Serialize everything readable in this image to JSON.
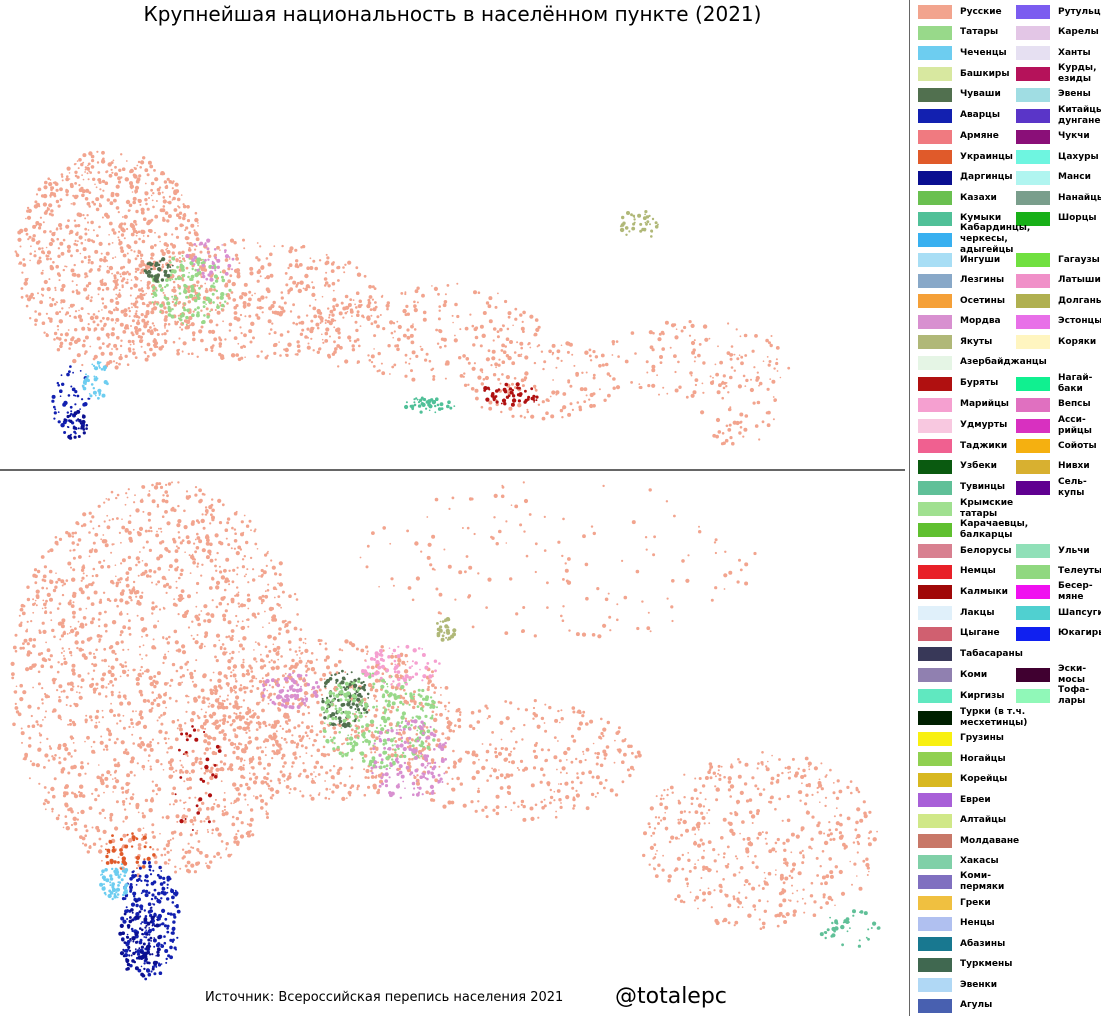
{
  "header": {
    "title": "Крупнейшая национальность в населённом пункте (2021)"
  },
  "footer": {
    "source": "Источник: Всероссийская перепись населения 2021",
    "credit": "@totalepc"
  },
  "legend": {
    "rows": [
      {
        "left": {
          "label": "Русские",
          "color": "#f2a48e"
        },
        "right": {
          "label": "Рутульцы",
          "color": "#7b5cf0"
        }
      },
      {
        "left": {
          "label": "Татары",
          "color": "#98d98a"
        },
        "right": {
          "label": "Карелы",
          "color": "#e3c6e6"
        }
      },
      {
        "left": {
          "label": "Чеченцы",
          "color": "#6dcdf0"
        },
        "right": {
          "label": "Ханты",
          "color": "#e6e0f2"
        }
      },
      {
        "left": {
          "label": "Башкиры",
          "color": "#d8e8a0"
        },
        "right": {
          "label": "Курды,\nезиды",
          "color": "#b5125a"
        }
      },
      {
        "left": {
          "label": "Чуваши",
          "color": "#51704f"
        },
        "right": {
          "label": "Эвены",
          "color": "#a0dde3"
        }
      },
      {
        "left": {
          "label": "Аварцы",
          "color": "#1220b0"
        },
        "right": {
          "label": "Китайцы,\nдунгане",
          "color": "#5a35c8"
        }
      },
      {
        "left": {
          "label": "Армяне",
          "color": "#f07a80"
        },
        "right": {
          "label": "Чукчи",
          "color": "#8a0f78"
        }
      },
      {
        "left": {
          "label": "Украинцы",
          "color": "#e05a2a"
        },
        "right": {
          "label": "Цахуры",
          "color": "#6ef5e0"
        }
      },
      {
        "left": {
          "label": "Даргинцы",
          "color": "#0a0f90"
        },
        "right": {
          "label": "Манси",
          "color": "#b0f5f0"
        }
      },
      {
        "left": {
          "label": "Казахи",
          "color": "#6ac050"
        },
        "right": {
          "label": "Нанайцы",
          "color": "#7a9e8c"
        }
      },
      {
        "left": {
          "label": "Кумыки",
          "color": "#50c098"
        },
        "right": {
          "label": "Шорцы",
          "color": "#18b018"
        }
      },
      {
        "left": {
          "label": "Кабардинцы,\nчеркесы, адыгейцы",
          "color": "#38b0f0"
        }
      },
      {
        "left": {
          "label": "Ингуши",
          "color": "#a8def5"
        },
        "right": {
          "label": "Гагаузы",
          "color": "#70e040"
        }
      },
      {
        "left": {
          "label": "Лезгины",
          "color": "#88a8c8"
        },
        "right": {
          "label": "Латыши",
          "color": "#f090c8"
        }
      },
      {
        "left": {
          "label": "Осетины",
          "color": "#f5a038"
        },
        "right": {
          "label": "Долганы",
          "color": "#b0b050"
        }
      },
      {
        "left": {
          "label": "Мордва",
          "color": "#d890d0"
        },
        "right": {
          "label": "Эстонцы",
          "color": "#e870e8"
        }
      },
      {
        "left": {
          "label": "Якуты",
          "color": "#b0b878"
        },
        "right": {
          "label": "Коряки",
          "color": "#fff5c0"
        }
      },
      {
        "left": {
          "label": "Азербайджанцы",
          "color": "#e5f5e5"
        }
      },
      {
        "left": {
          "label": "Буряты",
          "color": "#b01010"
        },
        "right": {
          "label": "Нагай-\nбаки",
          "color": "#10f090"
        }
      },
      {
        "left": {
          "label": "Марийцы",
          "color": "#f5a0d0"
        },
        "right": {
          "label": "Вепсы",
          "color": "#e070c0"
        }
      },
      {
        "left": {
          "label": "Удмурты",
          "color": "#f8c8e0"
        },
        "right": {
          "label": "Асси-\nрийцы",
          "color": "#d830c0"
        }
      },
      {
        "left": {
          "label": "Таджики",
          "color": "#f06090"
        },
        "right": {
          "label": "Сойоты",
          "color": "#f5b010"
        }
      },
      {
        "left": {
          "label": "Узбеки",
          "color": "#0a5a10"
        },
        "right": {
          "label": "Нивхи",
          "color": "#d8b030"
        }
      },
      {
        "left": {
          "label": "Тувинцы",
          "color": "#60c098"
        },
        "right": {
          "label": "Сель-\nкупы",
          "color": "#600090"
        }
      },
      {
        "left": {
          "label": "Крымские татары",
          "color": "#a0e090"
        }
      },
      {
        "left": {
          "label": "Карачаевцы,\nбалкарцы",
          "color": "#60c030"
        }
      },
      {
        "left": {
          "label": "Белорусы",
          "color": "#d88090"
        },
        "right": {
          "label": "Ульчи",
          "color": "#90e0b8"
        }
      },
      {
        "left": {
          "label": "Немцы",
          "color": "#e82028"
        },
        "right": {
          "label": "Телеуты",
          "color": "#90d880"
        }
      },
      {
        "left": {
          "label": "Калмыки",
          "color": "#a00808"
        },
        "right": {
          "label": "Бесер-\nмяне",
          "color": "#f010f0"
        }
      },
      {
        "left": {
          "label": "Лакцы",
          "color": "#e0f0fa"
        },
        "right": {
          "label": "Шапсуги",
          "color": "#50d0d0"
        }
      },
      {
        "left": {
          "label": "Цыгане",
          "color": "#d06070"
        },
        "right": {
          "label": "Юкагиры",
          "color": "#1020f0"
        }
      },
      {
        "left": {
          "label": "Табасараны",
          "color": "#383858"
        }
      },
      {
        "left": {
          "label": "Коми",
          "color": "#9080b0"
        },
        "right": {
          "label": "Эски-\nмосы",
          "color": "#400030"
        }
      },
      {
        "left": {
          "label": "Киргизы",
          "color": "#60e8c0"
        },
        "right": {
          "label": "Тофа-\nлары",
          "color": "#90f8b8"
        }
      },
      {
        "left": {
          "label": "Турки (в т.ч.\nмесхетинцы)",
          "color": "#002000"
        }
      },
      {
        "left": {
          "label": "Грузины",
          "color": "#f8f010"
        }
      },
      {
        "left": {
          "label": "Ногайцы",
          "color": "#90d050"
        }
      },
      {
        "left": {
          "label": "Корейцы",
          "color": "#d8b820"
        }
      },
      {
        "left": {
          "label": "Евреи",
          "color": "#a860d8"
        }
      },
      {
        "left": {
          "label": "Алтайцы",
          "color": "#d0e888"
        }
      },
      {
        "left": {
          "label": "Молдаване",
          "color": "#c87868"
        }
      },
      {
        "left": {
          "label": "Хакасы",
          "color": "#80d0a8"
        }
      },
      {
        "left": {
          "label": "Коми-пермяки",
          "color": "#8070c0"
        }
      },
      {
        "left": {
          "label": "Греки",
          "color": "#f0c040"
        }
      },
      {
        "left": {
          "label": "Ненцы",
          "color": "#b0c0f0"
        }
      },
      {
        "left": {
          "label": "Абазины",
          "color": "#187890"
        }
      },
      {
        "left": {
          "label": "Туркмены",
          "color": "#406850"
        }
      },
      {
        "left": {
          "label": "Эвенки",
          "color": "#b0d8f5"
        }
      },
      {
        "left": {
          "label": "Агулы",
          "color": "#4860b0"
        }
      }
    ]
  }
}
